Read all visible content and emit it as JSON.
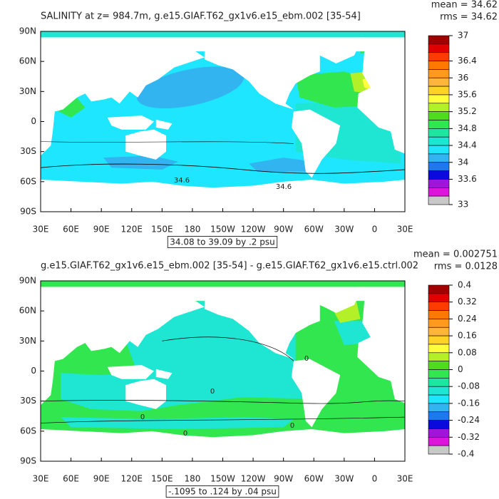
{
  "panels": [
    {
      "title": "SALINITY at z= 984.7m, g.e15.GIAF.T62_gx1v6.e15_ebm.002 [35-54]",
      "mean": "mean = 34.62",
      "rms": "rms = 34.62",
      "x_ticks": [
        "30E",
        "60E",
        "90E",
        "120E",
        "150E",
        "180",
        "150W",
        "120W",
        "90W",
        "60W",
        "30W",
        "0",
        "30E"
      ],
      "y_ticks": [
        "90N",
        "60N",
        "30N",
        "0",
        "30S",
        "60S",
        "90S"
      ],
      "colorbar": {
        "lim": [
          33,
          37
        ],
        "ticks": [
          37,
          36.4,
          36,
          35.6,
          35.2,
          34.8,
          34.4,
          34,
          33.6,
          33
        ],
        "colors": [
          "#a00000",
          "#e00000",
          "#ff3c00",
          "#ff7800",
          "#ff9a1e",
          "#ffb43c",
          "#ffd228",
          "#ffff3c",
          "#b4f028",
          "#50dc1e",
          "#32e650",
          "#1ee6a0",
          "#1ee6d2",
          "#1ee6ff",
          "#32b4f0",
          "#1e78f0",
          "#0a0adc",
          "#a014dc",
          "#dc14dc",
          "#c8c8c8"
        ]
      },
      "range_note": "34.08 to 39.09 by .2 psu",
      "contour_labels": [
        "34.6",
        "34.6"
      ]
    },
    {
      "title": "g.e15.GIAF.T62_gx1v6.e15_ebm.002 [35-54] - g.e15.GIAF.T62_gx1v6.e15.ctrl.002",
      "mean": "mean = 0.002751",
      "rms": "rms = 0.0128",
      "x_ticks": [
        "30E",
        "60E",
        "90E",
        "120E",
        "150E",
        "180",
        "150W",
        "120W",
        "90W",
        "60W",
        "30W",
        "0",
        "30E"
      ],
      "y_ticks": [
        "90N",
        "60N",
        "30N",
        "0",
        "30S",
        "60S",
        "90S"
      ],
      "colorbar": {
        "lim": [
          -0.4,
          0.4
        ],
        "ticks": [
          0.4,
          0.32,
          0.24,
          0.16,
          0.08,
          0,
          -0.08,
          -0.16,
          -0.24,
          -0.32,
          -0.4
        ],
        "colors": [
          "#a00000",
          "#e00000",
          "#ff3c00",
          "#ff7800",
          "#ff9a1e",
          "#ffb43c",
          "#ffd228",
          "#ffff3c",
          "#b4f028",
          "#50dc1e",
          "#32e650",
          "#1ee6a0",
          "#1ee6d2",
          "#1ee6ff",
          "#32b4f0",
          "#1e78f0",
          "#0a0adc",
          "#a014dc",
          "#dc14dc",
          "#c8c8c8"
        ]
      },
      "range_note": "-.1095 to .124 by .04 psu",
      "contour_labels": [
        "0",
        "0",
        "0",
        "0",
        "0"
      ]
    }
  ]
}
